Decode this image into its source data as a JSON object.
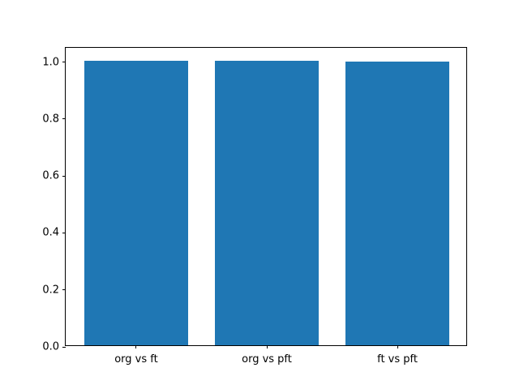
{
  "chart_data": {
    "type": "bar",
    "categories": [
      "org vs ft",
      "org vs pft",
      "ft vs pft"
    ],
    "values": [
      0.998,
      0.998,
      0.995
    ],
    "title": "",
    "xlabel": "",
    "ylabel": "",
    "ylim": [
      0,
      1.05
    ],
    "yticks": [
      0.0,
      0.2,
      0.4,
      0.6,
      0.8,
      1.0
    ],
    "ytick_labels": [
      "0.0",
      "0.2",
      "0.4",
      "0.6",
      "0.8",
      "1.0"
    ],
    "bar_color": "#1f77b4",
    "axis_color": "#000000",
    "background_color": "#ffffff",
    "grid": false,
    "legend": false
  }
}
